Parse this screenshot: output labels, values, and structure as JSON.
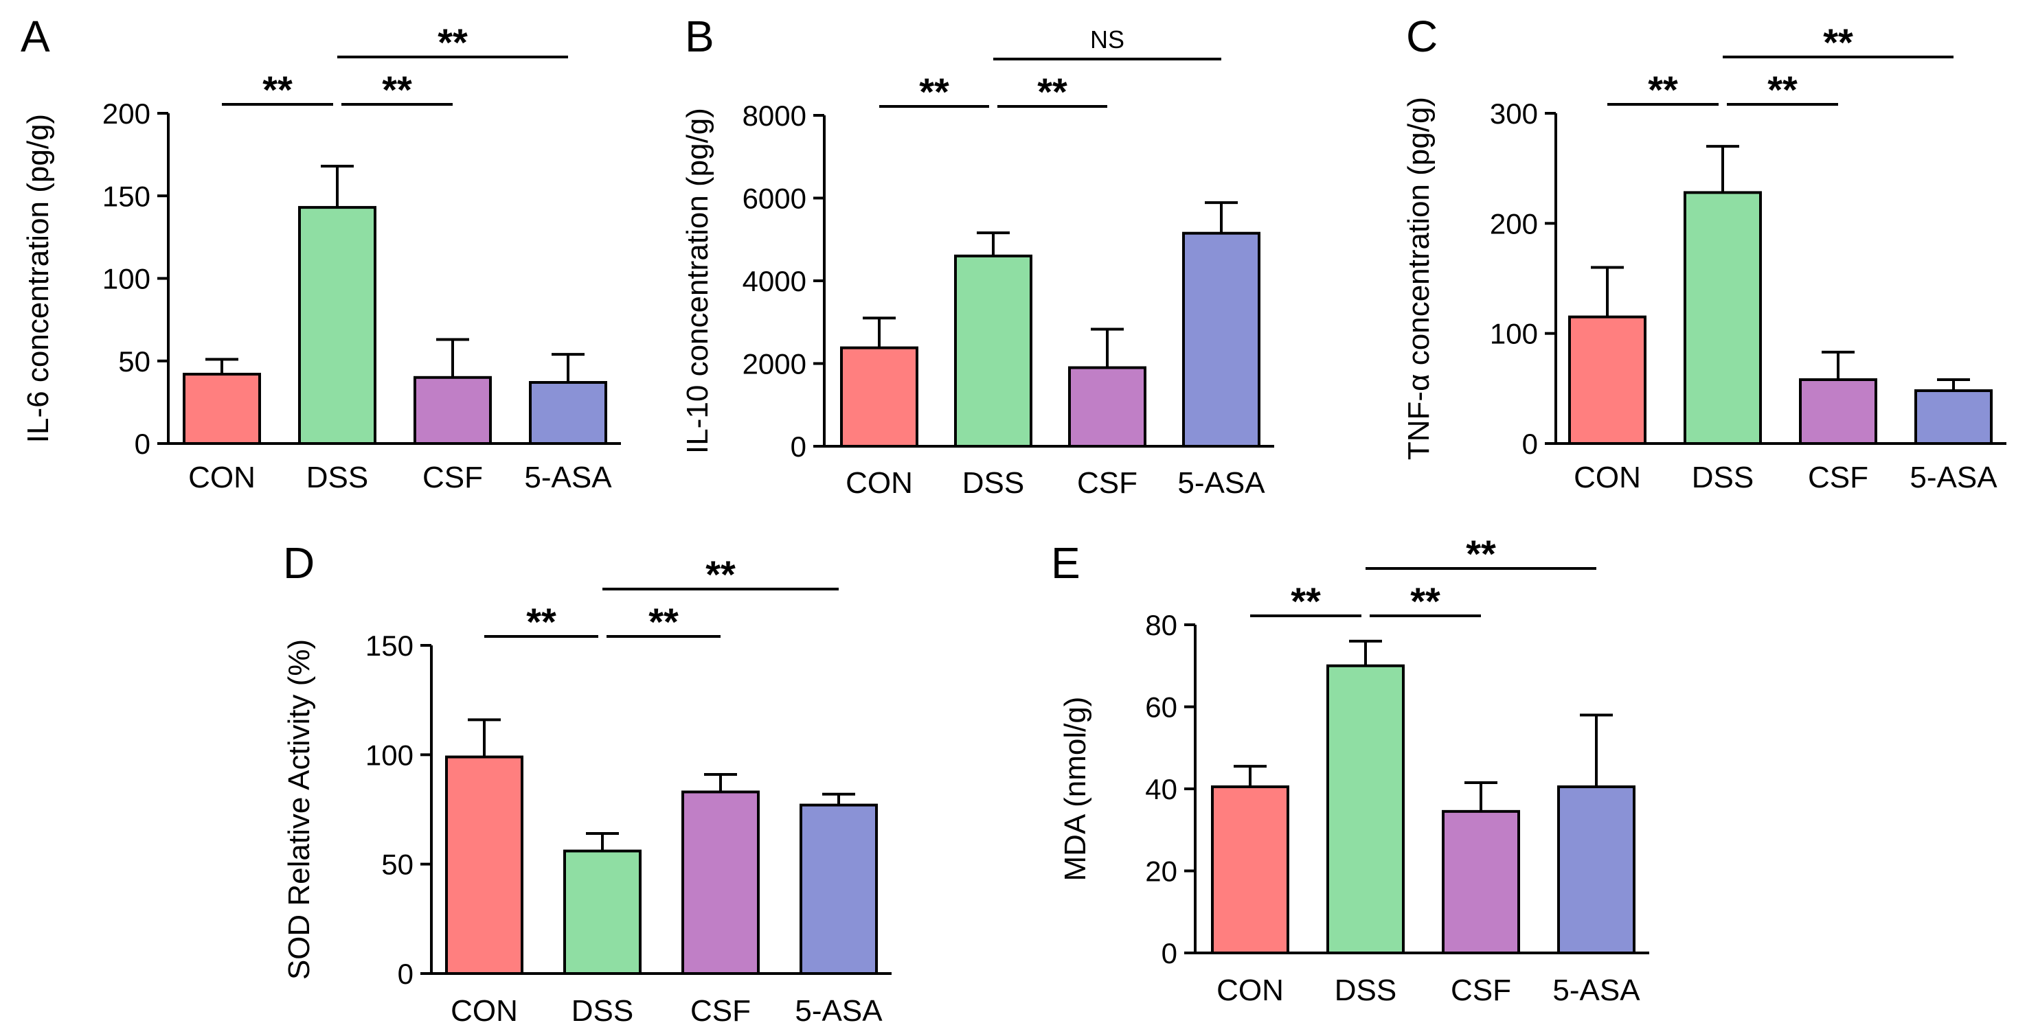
{
  "colors": {
    "CON": "#ff7f7f",
    "DSS": "#8fdea3",
    "CSF": "#c07fc6",
    "5-ASA": "#8a92d6"
  },
  "chart_data": [
    {
      "type": "bar",
      "panel": "A",
      "categories": [
        "CON",
        "DSS",
        "CSF",
        "5-ASA"
      ],
      "values": [
        42,
        143,
        40,
        37
      ],
      "errors": [
        9,
        25,
        23,
        17
      ],
      "ylabel": "IL-6 concentration (pg/g)",
      "ylim": [
        0,
        200
      ],
      "yticks": [
        "0",
        "50",
        "100",
        "150",
        "200"
      ],
      "significance": [
        {
          "from": 0,
          "to": 1,
          "label": "**"
        },
        {
          "from": 1,
          "to": 2,
          "label": "**"
        },
        {
          "from": 1,
          "to": 3,
          "label": "**"
        }
      ]
    },
    {
      "type": "bar",
      "panel": "B",
      "categories": [
        "CON",
        "DSS",
        "CSF",
        "5-ASA"
      ],
      "values": [
        2380,
        4600,
        1900,
        5150
      ],
      "errors": [
        720,
        560,
        930,
        740
      ],
      "ylabel": "IL-10 concentration (pg/g)",
      "ylim": [
        0,
        8000
      ],
      "yticks": [
        "0",
        "2000",
        "4000",
        "6000",
        "8000"
      ],
      "significance": [
        {
          "from": 0,
          "to": 1,
          "label": "**"
        },
        {
          "from": 1,
          "to": 2,
          "label": "**"
        },
        {
          "from": 1,
          "to": 3,
          "label": "NS"
        }
      ]
    },
    {
      "type": "bar",
      "panel": "C",
      "categories": [
        "CON",
        "DSS",
        "CSF",
        "5-ASA"
      ],
      "values": [
        115,
        228,
        58,
        48
      ],
      "errors": [
        45,
        42,
        25,
        10
      ],
      "ylabel": "TNF-α concentration (pg/g)",
      "ylim": [
        0,
        300
      ],
      "yticks": [
        "0",
        "100",
        "200",
        "300"
      ],
      "significance": [
        {
          "from": 0,
          "to": 1,
          "label": "**"
        },
        {
          "from": 1,
          "to": 2,
          "label": "**"
        },
        {
          "from": 1,
          "to": 3,
          "label": "**"
        }
      ]
    },
    {
      "type": "bar",
      "panel": "D",
      "categories": [
        "CON",
        "DSS",
        "CSF",
        "5-ASA"
      ],
      "values": [
        99,
        56,
        83,
        77
      ],
      "errors": [
        17,
        8,
        8,
        5
      ],
      "ylabel": "SOD Relative Activity (%)",
      "ylim": [
        0,
        150
      ],
      "yticks": [
        "0",
        "50",
        "100",
        "150"
      ],
      "significance": [
        {
          "from": 0,
          "to": 1,
          "label": "**"
        },
        {
          "from": 1,
          "to": 2,
          "label": "**"
        },
        {
          "from": 1,
          "to": 3,
          "label": "**"
        }
      ]
    },
    {
      "type": "bar",
      "panel": "E",
      "categories": [
        "CON",
        "DSS",
        "CSF",
        "5-ASA"
      ],
      "values": [
        40.5,
        70,
        34.5,
        40.5
      ],
      "errors": [
        5,
        6,
        7,
        17.5
      ],
      "ylabel": "MDA (nmol/g)",
      "ylim": [
        0,
        80
      ],
      "yticks": [
        "0",
        "20",
        "40",
        "60",
        "80"
      ],
      "significance": [
        {
          "from": 0,
          "to": 1,
          "label": "**"
        },
        {
          "from": 1,
          "to": 2,
          "label": "**"
        },
        {
          "from": 1,
          "to": 3,
          "label": "**"
        }
      ]
    }
  ]
}
